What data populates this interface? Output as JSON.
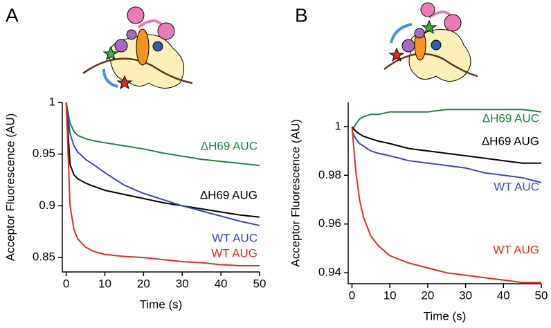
{
  "chart_data": [
    {
      "type": "line",
      "panel": "A",
      "xlabel": "Time (s)",
      "ylabel": "Acceptor Fluorescence (AU)",
      "x": [
        0,
        1,
        2,
        3,
        5,
        7,
        10,
        15,
        20,
        25,
        30,
        35,
        40,
        45,
        50
      ],
      "xlim": [
        -1,
        50
      ],
      "xticks": [
        0,
        10,
        20,
        30,
        40,
        50
      ],
      "ylim": [
        0.836,
        1.0
      ],
      "yticks": [
        0.85,
        0.9,
        0.95,
        1
      ],
      "series": [
        {
          "name": "ΔH69 AUC",
          "color": "#1f8040",
          "values": [
            1.0,
            0.98,
            0.972,
            0.968,
            0.965,
            0.963,
            0.961,
            0.958,
            0.955,
            0.951,
            0.948,
            0.945,
            0.943,
            0.941,
            0.939
          ]
        },
        {
          "name": "ΔH69 AUG",
          "color": "#000000",
          "values": [
            1.0,
            0.94,
            0.93,
            0.926,
            0.922,
            0.919,
            0.915,
            0.911,
            0.907,
            0.903,
            0.9,
            0.897,
            0.894,
            0.891,
            0.889
          ]
        },
        {
          "name": "WT AUC",
          "color": "#3548b5",
          "values": [
            1.0,
            0.97,
            0.958,
            0.952,
            0.945,
            0.94,
            0.932,
            0.92,
            0.912,
            0.906,
            0.9,
            0.895,
            0.89,
            0.885,
            0.881
          ]
        },
        {
          "name": "WT AUG",
          "color": "#e32a1f",
          "values": [
            1.0,
            0.9,
            0.877,
            0.868,
            0.86,
            0.856,
            0.853,
            0.851,
            0.85,
            0.848,
            0.846,
            0.845,
            0.843,
            0.842,
            0.842
          ]
        }
      ]
    },
    {
      "type": "line",
      "panel": "B",
      "xlabel": "Time (s)",
      "ylabel": "Acceptor Fluorescence (AU)",
      "x": [
        0,
        1,
        2,
        3,
        5,
        7,
        10,
        15,
        20,
        25,
        30,
        35,
        40,
        45,
        50
      ],
      "xlim": [
        -1,
        50
      ],
      "xticks": [
        0,
        10,
        20,
        30,
        40,
        50
      ],
      "ylim": [
        0.9355,
        1.0099
      ],
      "yticks": [
        0.94,
        0.96,
        0.98,
        1
      ],
      "series": [
        {
          "name": "ΔH69 AUC",
          "color": "#1f8040",
          "values": [
            0.998,
            1.001,
            1.003,
            1.004,
            1.005,
            1.005,
            1.006,
            1.006,
            1.006,
            1.007,
            1.007,
            1.007,
            1.007,
            1.007,
            1.006
          ]
        },
        {
          "name": "ΔH69 AUG",
          "color": "#000000",
          "values": [
            1.0,
            0.998,
            0.997,
            0.996,
            0.995,
            0.994,
            0.993,
            0.991,
            0.99,
            0.989,
            0.988,
            0.987,
            0.986,
            0.985,
            0.985
          ]
        },
        {
          "name": "WT AUC",
          "color": "#3548b5",
          "values": [
            0.998,
            0.995,
            0.993,
            0.992,
            0.99,
            0.989,
            0.988,
            0.986,
            0.985,
            0.984,
            0.983,
            0.981,
            0.98,
            0.979,
            0.977
          ]
        },
        {
          "name": "WT AUG",
          "color": "#e32a1f",
          "values": [
            1.0,
            0.982,
            0.97,
            0.963,
            0.955,
            0.951,
            0.947,
            0.944,
            0.942,
            0.94,
            0.939,
            0.938,
            0.937,
            0.936,
            0.936
          ]
        }
      ]
    }
  ]
}
